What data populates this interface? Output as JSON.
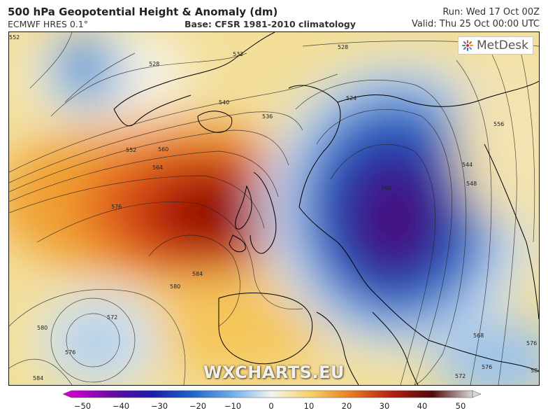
{
  "header": {
    "title": "500 hPa Geopotential Height & Anomaly (dm)",
    "model": "ECMWF HRES 0.1°",
    "base": "Base: CFSR 1981-2010 climatology",
    "run": "Run: Wed 17 Oct 00Z",
    "valid": "Valid: Thu 25 Oct 00:00 UTC"
  },
  "logo": {
    "text": "MetDesk",
    "icon": "metdesk-logo-icon"
  },
  "watermark": "WXCHARTS.EU",
  "contour_labels": [
    "552",
    "528",
    "532",
    "528",
    "540",
    "536",
    "524",
    "556",
    "544",
    "548",
    "552",
    "560",
    "564",
    "576",
    "584",
    "580",
    "572",
    "580",
    "576",
    "584",
    "576",
    "568",
    "572",
    "576",
    "584",
    "560"
  ],
  "colorbar": {
    "ticks": [
      "−50",
      "−40",
      "−30",
      "−20",
      "−10",
      "0",
      "10",
      "20",
      "30",
      "40",
      "50"
    ],
    "colors": [
      "#c800c8",
      "#5a0090",
      "#1e1ea0",
      "#1e64c8",
      "#64aae6",
      "#f0f0f0",
      "#f5c850",
      "#e6781e",
      "#b41e14",
      "#500a0a",
      "#c8c8c8"
    ]
  },
  "colors": {
    "positive_core": "#7a0000",
    "negative_core": "#3c0a6e",
    "land_outline": "#000000",
    "contour": "#222222"
  }
}
